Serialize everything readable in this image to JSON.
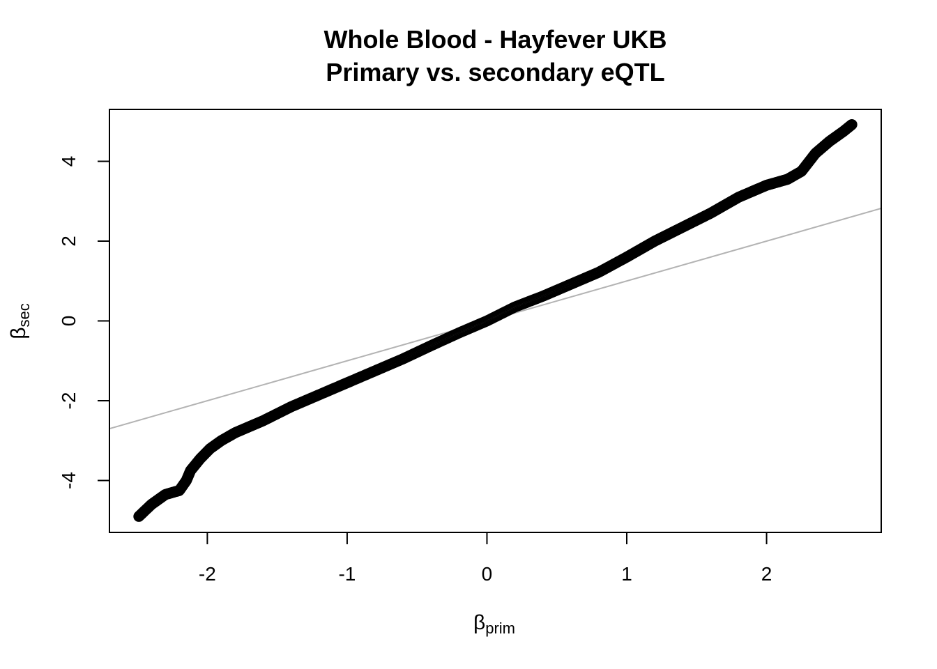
{
  "chart_data": {
    "type": "scatter",
    "title": "Whole Blood - Hayfever UKB",
    "subtitle": "Primary vs. secondary eQTL",
    "xlabel": {
      "symbol": "β",
      "subscript": "prim"
    },
    "ylabel": {
      "symbol": "β",
      "subscript": "sec"
    },
    "xlim": [
      -2.7,
      2.82
    ],
    "ylim": [
      -5.3,
      5.3
    ],
    "x_ticks": [
      -2,
      -1,
      0,
      1,
      2
    ],
    "x_tick_labels": [
      "-2",
      "-1",
      "0",
      "1",
      "2"
    ],
    "y_ticks": [
      -4,
      -2,
      0,
      2,
      4
    ],
    "y_tick_labels": [
      "-4",
      "-2",
      "0",
      "2",
      "4"
    ],
    "grid": false,
    "marker": "open-circle",
    "reference_line": {
      "type": "identity",
      "intercept": 0,
      "slope": 1,
      "color": "#b3b3b3"
    },
    "curve_anchors": [
      [
        -2.49,
        -4.9
      ],
      [
        -2.4,
        -4.6
      ],
      [
        -2.3,
        -4.35
      ],
      [
        -2.2,
        -4.25
      ],
      [
        -2.15,
        -4.0
      ],
      [
        -2.12,
        -3.75
      ],
      [
        -2.05,
        -3.45
      ],
      [
        -1.98,
        -3.2
      ],
      [
        -1.9,
        -3.0
      ],
      [
        -1.8,
        -2.8
      ],
      [
        -1.6,
        -2.5
      ],
      [
        -1.4,
        -2.15
      ],
      [
        -1.2,
        -1.85
      ],
      [
        -1.0,
        -1.55
      ],
      [
        -0.8,
        -1.25
      ],
      [
        -0.6,
        -0.95
      ],
      [
        -0.4,
        -0.62
      ],
      [
        -0.2,
        -0.3
      ],
      [
        0.0,
        0.0
      ],
      [
        0.2,
        0.35
      ],
      [
        0.4,
        0.62
      ],
      [
        0.6,
        0.92
      ],
      [
        0.8,
        1.22
      ],
      [
        1.0,
        1.6
      ],
      [
        1.2,
        2.0
      ],
      [
        1.4,
        2.35
      ],
      [
        1.6,
        2.7
      ],
      [
        1.8,
        3.1
      ],
      [
        2.0,
        3.4
      ],
      [
        2.15,
        3.55
      ],
      [
        2.25,
        3.75
      ],
      [
        2.35,
        4.2
      ],
      [
        2.45,
        4.5
      ],
      [
        2.55,
        4.75
      ],
      [
        2.61,
        4.92
      ]
    ],
    "n_points": 900
  }
}
